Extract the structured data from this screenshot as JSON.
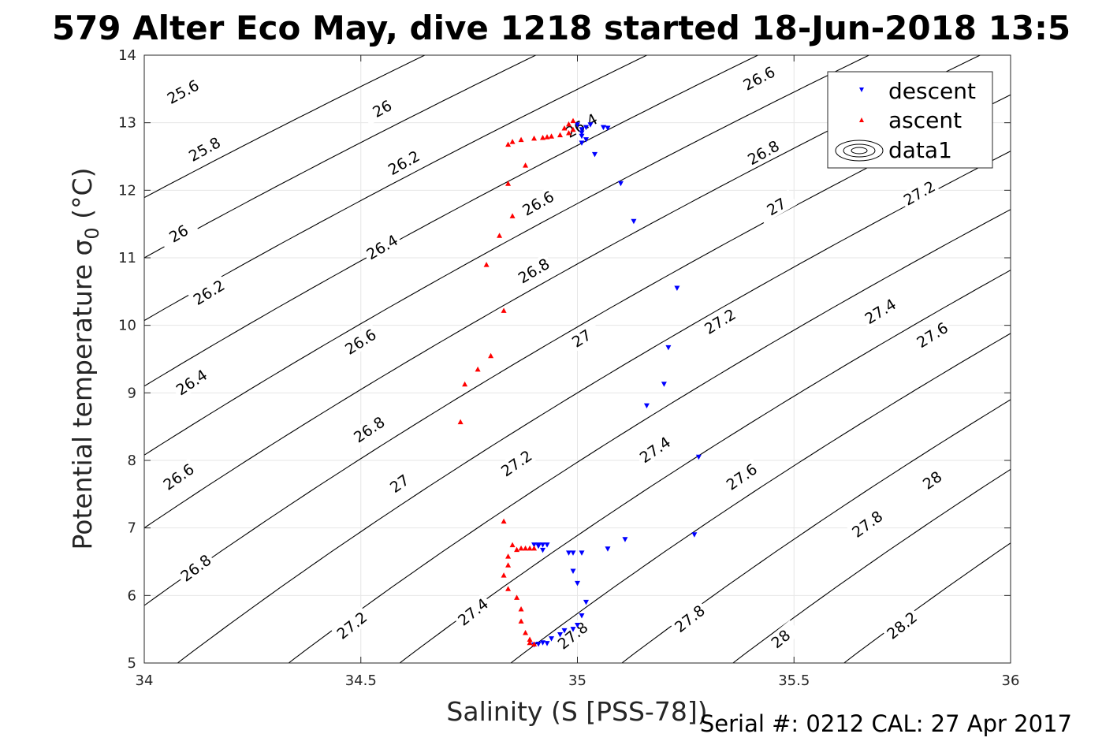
{
  "title": "579 Alter Eco May, dive 1218 started 18-Jun-2018 13:5",
  "footer": "Serial #: 0212  CAL: 27 Apr 2017",
  "chart_data": {
    "type": "scatter",
    "title": "579 Alter Eco May, dive 1218 started 18-Jun-2018 13:5",
    "xlabel": "Salinity (S [PSS-78])",
    "ylabel": "Potential temperature σ0 (°C)",
    "xlim": [
      34,
      36
    ],
    "ylim": [
      5,
      14
    ],
    "xticks": [
      34,
      34.5,
      35,
      35.5,
      36
    ],
    "xticklabels": [
      "34",
      "34.5",
      "35",
      "35.5",
      "36"
    ],
    "yticks": [
      5,
      6,
      7,
      8,
      9,
      10,
      11,
      12,
      13,
      14
    ],
    "yticklabels": [
      "5",
      "6",
      "7",
      "8",
      "9",
      "10",
      "11",
      "12",
      "13",
      "14"
    ],
    "grid": true,
    "legend_position": "top-right",
    "density_contours": {
      "name": "data1",
      "levels": [
        25.6,
        25.8,
        26,
        26.2,
        26.4,
        26.6,
        26.8,
        27,
        27.2,
        27.4,
        27.6,
        27.8,
        28,
        28.2
      ],
      "color": "#000000",
      "labels": [
        {
          "text": "25.6",
          "x": 34.09,
          "y": 13.45
        },
        {
          "text": "25.8",
          "x": 34.14,
          "y": 12.6
        },
        {
          "text": "26",
          "x": 34.08,
          "y": 11.35
        },
        {
          "text": "26.2",
          "x": 34.15,
          "y": 10.48
        },
        {
          "text": "26.4",
          "x": 34.11,
          "y": 9.15
        },
        {
          "text": "26.6",
          "x": 34.08,
          "y": 7.75
        },
        {
          "text": "26.8",
          "x": 34.12,
          "y": 6.4
        },
        {
          "text": "26",
          "x": 34.55,
          "y": 13.2
        },
        {
          "text": "26.2",
          "x": 34.6,
          "y": 12.4
        },
        {
          "text": "26.4",
          "x": 34.55,
          "y": 11.15
        },
        {
          "text": "26.6",
          "x": 34.5,
          "y": 9.75
        },
        {
          "text": "26.8",
          "x": 34.52,
          "y": 8.45
        },
        {
          "text": "27",
          "x": 34.59,
          "y": 7.65
        },
        {
          "text": "27.2",
          "x": 34.48,
          "y": 5.55
        },
        {
          "text": "26.4",
          "x": 35.01,
          "y": 12.95
        },
        {
          "text": "26.6",
          "x": 34.91,
          "y": 11.8
        },
        {
          "text": "26.8",
          "x": 34.9,
          "y": 10.8
        },
        {
          "text": "27",
          "x": 35.01,
          "y": 9.8
        },
        {
          "text": "27.2",
          "x": 34.86,
          "y": 7.95
        },
        {
          "text": "27.4",
          "x": 34.76,
          "y": 5.75
        },
        {
          "text": "27.8",
          "x": 34.99,
          "y": 5.4
        },
        {
          "text": "26.6",
          "x": 35.42,
          "y": 13.65
        },
        {
          "text": "26.8",
          "x": 35.43,
          "y": 12.55
        },
        {
          "text": "27",
          "x": 35.46,
          "y": 11.75
        },
        {
          "text": "27.2",
          "x": 35.33,
          "y": 10.05
        },
        {
          "text": "27.4",
          "x": 35.18,
          "y": 8.15
        },
        {
          "text": "27.6",
          "x": 35.38,
          "y": 7.75
        },
        {
          "text": "27.8",
          "x": 35.26,
          "y": 5.65
        },
        {
          "text": "28",
          "x": 35.47,
          "y": 5.35
        },
        {
          "text": "27.2",
          "x": 35.79,
          "y": 11.95
        },
        {
          "text": "27.4",
          "x": 35.7,
          "y": 10.2
        },
        {
          "text": "27.6",
          "x": 35.82,
          "y": 9.85
        },
        {
          "text": "27.8",
          "x": 35.67,
          "y": 7.05
        },
        {
          "text": "28",
          "x": 35.82,
          "y": 7.7
        },
        {
          "text": "28.2",
          "x": 35.75,
          "y": 5.55
        }
      ]
    },
    "series": [
      {
        "name": "descent",
        "marker": "triangle-down",
        "color": "#0000ff",
        "points": [
          [
            35.0,
            12.97
          ],
          [
            35.01,
            12.9
          ],
          [
            35.01,
            12.85
          ],
          [
            35.02,
            12.93
          ],
          [
            35.03,
            12.97
          ],
          [
            35.01,
            12.8
          ],
          [
            35.01,
            12.7
          ],
          [
            35.02,
            12.75
          ],
          [
            35.06,
            12.93
          ],
          [
            35.07,
            12.92
          ],
          [
            35.04,
            12.53
          ],
          [
            35.1,
            12.1
          ],
          [
            35.13,
            11.54
          ],
          [
            35.23,
            10.55
          ],
          [
            35.21,
            9.67
          ],
          [
            35.2,
            9.13
          ],
          [
            35.16,
            8.81
          ],
          [
            35.28,
            8.05
          ],
          [
            35.27,
            6.9
          ],
          [
            35.11,
            6.83
          ],
          [
            35.07,
            6.69
          ],
          [
            35.01,
            6.63
          ],
          [
            34.99,
            6.63
          ],
          [
            34.98,
            6.63
          ],
          [
            34.92,
            6.67
          ],
          [
            34.9,
            6.75
          ],
          [
            34.91,
            6.75
          ],
          [
            34.92,
            6.75
          ],
          [
            34.91,
            6.73
          ],
          [
            34.93,
            6.75
          ],
          [
            34.99,
            6.36
          ],
          [
            35.0,
            6.18
          ],
          [
            35.02,
            5.9
          ],
          [
            35.01,
            5.7
          ],
          [
            35.0,
            5.56
          ],
          [
            34.99,
            5.5
          ],
          [
            34.97,
            5.48
          ],
          [
            34.96,
            5.42
          ],
          [
            34.94,
            5.36
          ],
          [
            34.92,
            5.3
          ],
          [
            34.9,
            5.27
          ],
          [
            34.91,
            5.28
          ],
          [
            34.93,
            5.29
          ]
        ]
      },
      {
        "name": "ascent",
        "marker": "triangle-up",
        "color": "#ff0000",
        "points": [
          [
            34.99,
            13.03
          ],
          [
            34.98,
            12.98
          ],
          [
            34.97,
            12.92
          ],
          [
            34.99,
            12.9
          ],
          [
            34.98,
            12.85
          ],
          [
            34.96,
            12.82
          ],
          [
            34.94,
            12.8
          ],
          [
            34.93,
            12.79
          ],
          [
            34.92,
            12.78
          ],
          [
            34.9,
            12.77
          ],
          [
            34.87,
            12.75
          ],
          [
            34.85,
            12.72
          ],
          [
            34.84,
            12.68
          ],
          [
            34.88,
            12.37
          ],
          [
            34.84,
            12.1
          ],
          [
            34.85,
            11.62
          ],
          [
            34.82,
            11.33
          ],
          [
            34.79,
            10.9
          ],
          [
            34.83,
            10.22
          ],
          [
            34.8,
            9.55
          ],
          [
            34.77,
            9.35
          ],
          [
            34.74,
            9.13
          ],
          [
            34.73,
            8.57
          ],
          [
            34.83,
            7.1
          ],
          [
            34.85,
            6.75
          ],
          [
            34.86,
            6.68
          ],
          [
            34.87,
            6.7
          ],
          [
            34.88,
            6.7
          ],
          [
            34.89,
            6.7
          ],
          [
            34.9,
            6.7
          ],
          [
            34.84,
            6.58
          ],
          [
            34.84,
            6.45
          ],
          [
            34.83,
            6.3
          ],
          [
            34.84,
            6.1
          ],
          [
            34.86,
            5.97
          ],
          [
            34.87,
            5.8
          ],
          [
            34.87,
            5.62
          ],
          [
            34.88,
            5.45
          ],
          [
            34.89,
            5.35
          ],
          [
            34.89,
            5.3
          ],
          [
            34.9,
            5.28
          ]
        ]
      }
    ]
  }
}
